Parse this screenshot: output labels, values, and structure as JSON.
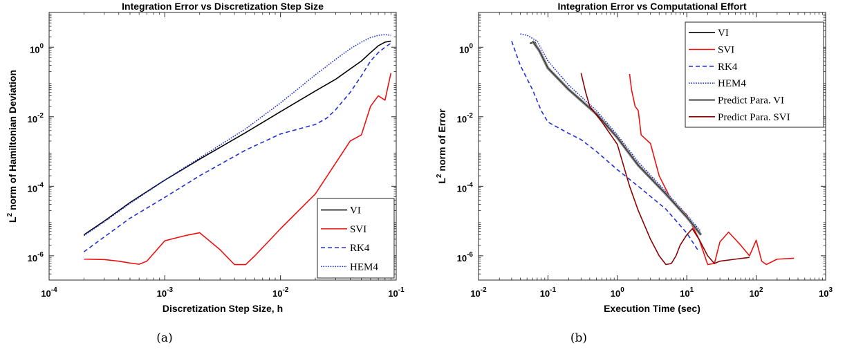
{
  "figure": {
    "captions": [
      "(a)",
      "(b)"
    ]
  },
  "chart_data": [
    {
      "type": "line",
      "title": "Integration Error vs Discretization Step Size",
      "xlabel": "Discretization Step Size, h",
      "ylabel": {
        "base": "L",
        "sup": "2",
        "rest": " norm of Hamiltonian Deviation"
      },
      "xscale": "log",
      "yscale": "log",
      "xlim": [
        0.0001,
        0.1
      ],
      "ylim": [
        2e-07,
        10
      ],
      "xtick_exponents": [
        -4,
        -3,
        -2,
        -1
      ],
      "ytick_exponents": [
        -6,
        -4,
        -2,
        0
      ],
      "tick_base": "10",
      "grid": false,
      "legend_position": "bottom-right",
      "series": [
        {
          "name": "VI",
          "color": "#000000",
          "dash": "solid",
          "points": [
            [
              0.0002,
              4e-06
            ],
            [
              0.0003,
              1e-05
            ],
            [
              0.0005,
              3.4e-05
            ],
            [
              0.001,
              0.00015
            ],
            [
              0.002,
              0.0006
            ],
            [
              0.005,
              0.0035
            ],
            [
              0.01,
              0.014
            ],
            [
              0.02,
              0.055
            ],
            [
              0.03,
              0.12
            ],
            [
              0.05,
              0.4
            ],
            [
              0.06,
              0.7
            ],
            [
              0.07,
              1.1
            ],
            [
              0.08,
              1.4
            ],
            [
              0.09,
              1.5
            ]
          ]
        },
        {
          "name": "SVI",
          "color": "#ee1111",
          "dash": "solid",
          "points": [
            [
              0.0002,
              8e-07
            ],
            [
              0.0003,
              7.8e-07
            ],
            [
              0.0004,
              7e-07
            ],
            [
              0.0005,
              6.2e-07
            ],
            [
              0.0006,
              5.7e-07
            ],
            [
              0.0007,
              7e-07
            ],
            [
              0.001,
              2.7e-06
            ],
            [
              0.0015,
              3.8e-06
            ],
            [
              0.002,
              4.6e-06
            ],
            [
              0.003,
              1.5e-06
            ],
            [
              0.004,
              5.6e-07
            ],
            [
              0.005,
              5.6e-07
            ],
            [
              0.006,
              1e-06
            ],
            [
              0.01,
              6e-06
            ],
            [
              0.02,
              6e-05
            ],
            [
              0.04,
              0.002
            ],
            [
              0.05,
              0.003
            ],
            [
              0.06,
              0.02
            ],
            [
              0.07,
              0.04
            ],
            [
              0.08,
              0.03
            ],
            [
              0.09,
              0.18
            ]
          ]
        },
        {
          "name": "RK4",
          "color": "#1f2fd6",
          "dash": "dashed",
          "points": [
            [
              0.0002,
              1.3e-06
            ],
            [
              0.0003,
              3.5e-06
            ],
            [
              0.0005,
              1.2e-05
            ],
            [
              0.001,
              4.8e-05
            ],
            [
              0.002,
              0.0002
            ],
            [
              0.005,
              0.0011
            ],
            [
              0.01,
              0.0032
            ],
            [
              0.02,
              0.006
            ],
            [
              0.025,
              0.009
            ],
            [
              0.03,
              0.016
            ],
            [
              0.04,
              0.05
            ],
            [
              0.05,
              0.15
            ],
            [
              0.06,
              0.4
            ],
            [
              0.07,
              0.7
            ],
            [
              0.08,
              1
            ],
            [
              0.09,
              1.3
            ]
          ]
        },
        {
          "name": "HEM4",
          "color": "#1f2fd6",
          "dash": "dotted",
          "points": [
            [
              0.0002,
              3.8e-06
            ],
            [
              0.0003,
              9.5e-06
            ],
            [
              0.0005,
              3.2e-05
            ],
            [
              0.001,
              0.00015
            ],
            [
              0.002,
              0.00065
            ],
            [
              0.005,
              0.0045
            ],
            [
              0.01,
              0.025
            ],
            [
              0.02,
              0.16
            ],
            [
              0.03,
              0.45
            ],
            [
              0.04,
              0.9
            ],
            [
              0.05,
              1.4
            ],
            [
              0.06,
              1.9
            ],
            [
              0.07,
              2.2
            ],
            [
              0.08,
              2.3
            ],
            [
              0.09,
              2.2
            ]
          ]
        }
      ]
    },
    {
      "type": "line",
      "title": "Integration Error vs Computational Effort",
      "xlabel": "Execution Time (sec)",
      "ylabel": {
        "base": "L",
        "sup": "2",
        "rest": " norm of Error"
      },
      "xscale": "log",
      "yscale": "log",
      "xlim": [
        0.01,
        1000
      ],
      "ylim": [
        2e-07,
        10
      ],
      "xtick_exponents": [
        -2,
        -1,
        0,
        1,
        2,
        3
      ],
      "ytick_exponents": [
        -6,
        -4,
        -2,
        0
      ],
      "tick_base": "10",
      "grid": false,
      "legend_position": "top-right",
      "series": [
        {
          "name": "VI",
          "color": "#000000",
          "dash": "solid",
          "points": [
            [
              0.055,
              1.3
            ],
            [
              0.065,
              1.4
            ],
            [
              0.075,
              0.8
            ],
            [
              0.1,
              0.25
            ],
            [
              0.2,
              0.06
            ],
            [
              0.5,
              0.012
            ],
            [
              1,
              0.0025
            ],
            [
              2,
              0.0004
            ],
            [
              5,
              6e-05
            ],
            [
              10,
              1.3e-05
            ],
            [
              15,
              4.5e-06
            ]
          ]
        },
        {
          "name": "SVI",
          "color": "#ee1111",
          "dash": "solid",
          "points": [
            [
              1.5,
              0.17
            ],
            [
              1.6,
              0.06
            ],
            [
              1.8,
              0.02
            ],
            [
              2,
              0.015
            ],
            [
              2.2,
              0.003
            ],
            [
              3,
              0.0017
            ],
            [
              4,
              0.0002
            ],
            [
              6,
              4e-05
            ],
            [
              10,
              1.5e-05
            ],
            [
              15,
              3e-06
            ],
            [
              20,
              5.6e-07
            ],
            [
              25,
              6e-07
            ],
            [
              30,
              2.5e-06
            ],
            [
              40,
              4.8e-06
            ],
            [
              60,
              2e-06
            ],
            [
              80,
              1e-06
            ],
            [
              100,
              2.8e-06
            ],
            [
              120,
              7e-07
            ],
            [
              140,
              5.6e-07
            ],
            [
              200,
              8e-07
            ],
            [
              350,
              8.5e-07
            ]
          ]
        },
        {
          "name": "RK4",
          "color": "#1f2fd6",
          "dash": "dashed",
          "points": [
            [
              0.03,
              1.5
            ],
            [
              0.04,
              0.3
            ],
            [
              0.06,
              0.06
            ],
            [
              0.08,
              0.015
            ],
            [
              0.1,
              0.007
            ],
            [
              0.2,
              0.0033
            ],
            [
              0.3,
              0.0022
            ],
            [
              0.5,
              0.001
            ],
            [
              1,
              0.0003
            ],
            [
              2,
              0.0001
            ],
            [
              5,
              2.2e-05
            ],
            [
              10,
              4.5e-06
            ],
            [
              15,
              1.3e-06
            ]
          ]
        },
        {
          "name": "HEM4",
          "color": "#1f2fd6",
          "dash": "dotted",
          "points": [
            [
              0.04,
              2.4
            ],
            [
              0.05,
              2.2
            ],
            [
              0.07,
              1.5
            ],
            [
              0.1,
              0.4
            ],
            [
              0.2,
              0.08
            ],
            [
              0.5,
              0.015
            ],
            [
              1,
              0.003
            ],
            [
              2,
              0.0005
            ],
            [
              5,
              7e-05
            ],
            [
              10,
              1.5e-05
            ],
            [
              16,
              5e-06
            ]
          ]
        },
        {
          "name": "Predict Para. VI",
          "color": "#888888",
          "dash": "solid",
          "width": 4,
          "points": [
            [
              0.06,
              1.5
            ],
            [
              0.075,
              0.8
            ],
            [
              0.1,
              0.25
            ],
            [
              0.2,
              0.06
            ],
            [
              0.5,
              0.012
            ],
            [
              1,
              0.0025
            ],
            [
              2,
              0.0004
            ],
            [
              5,
              6e-05
            ],
            [
              10,
              1.3e-05
            ],
            [
              16,
              4e-06
            ]
          ]
        },
        {
          "name": "Predict Para. SVI",
          "color": "#8b0000",
          "dash": "solid",
          "points": [
            [
              0.3,
              0.18
            ],
            [
              0.35,
              0.05
            ],
            [
              0.4,
              0.02
            ],
            [
              0.6,
              0.007
            ],
            [
              1,
              0.0016
            ],
            [
              1.5,
              0.0001
            ],
            [
              2,
              2e-05
            ],
            [
              3,
              3e-06
            ],
            [
              4,
              1e-06
            ],
            [
              5,
              5.6e-07
            ],
            [
              6,
              6e-07
            ],
            [
              7,
              1e-06
            ],
            [
              8,
              2e-06
            ],
            [
              10,
              4e-06
            ],
            [
              12,
              6e-06
            ],
            [
              15,
              3e-06
            ],
            [
              20,
              1e-06
            ],
            [
              25,
              6e-07
            ],
            [
              30,
              7e-07
            ],
            [
              50,
              8e-07
            ],
            [
              80,
              9e-07
            ]
          ]
        }
      ]
    }
  ]
}
